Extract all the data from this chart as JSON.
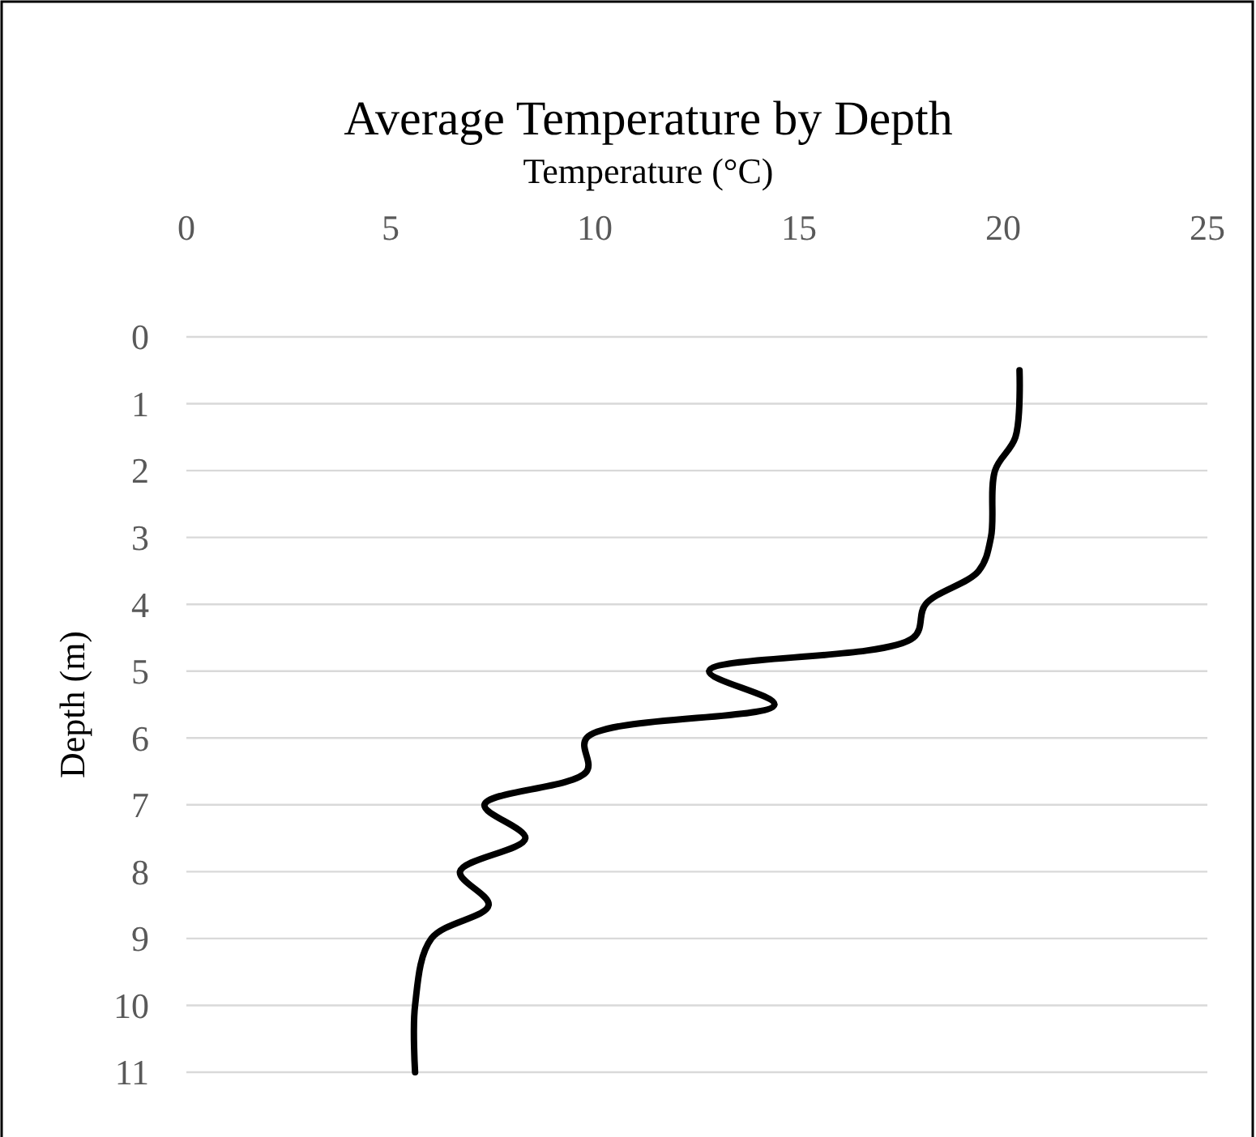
{
  "chart_data": {
    "type": "line",
    "title": "Average Temperature by Depth",
    "xlabel": "Temperature (°C)",
    "ylabel": "Depth (m)",
    "x": [
      20.4,
      20.3,
      19.8,
      19.7,
      19.4,
      18.1,
      17.8,
      12.8,
      14.4,
      9.8,
      9.8,
      7.3,
      8.3,
      6.7,
      7.4,
      6.0,
      5.6,
      5.6
    ],
    "values": [
      0.5,
      1.5,
      2,
      3,
      3.5,
      4,
      4.5,
      5,
      5.5,
      6,
      6.5,
      7,
      7.5,
      8,
      8.5,
      9,
      10,
      11
    ],
    "color": "#000000",
    "xlim": [
      0,
      25
    ],
    "xticks": [
      0,
      5,
      10,
      15,
      20,
      25
    ],
    "ylim": [
      11,
      0
    ],
    "yticks": [
      0,
      1,
      2,
      3,
      4,
      5,
      6,
      7,
      8,
      9,
      10,
      11
    ],
    "grid": "y",
    "marker": "none",
    "line_style": "solid"
  }
}
